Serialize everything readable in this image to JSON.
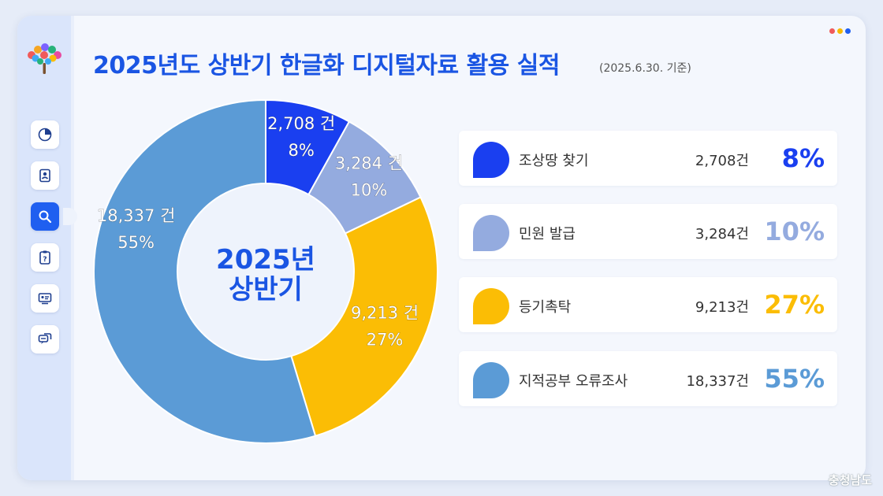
{
  "header": {
    "title": "2025년도 상반기 한글화 디지털자료 활용 실적",
    "subtitle": "(2025.6.30. 기준)"
  },
  "sidebar": {
    "items": [
      {
        "icon": "pie-chart-icon"
      },
      {
        "icon": "document-person-icon"
      },
      {
        "icon": "search-icon"
      },
      {
        "icon": "clipboard-question-icon"
      },
      {
        "icon": "monitor-id-icon"
      },
      {
        "icon": "chat-bubbles-icon"
      }
    ]
  },
  "window_dots": [
    "#f05a5a",
    "#f6b800",
    "#1f5ff0"
  ],
  "chart_data": {
    "type": "pie",
    "center_label": [
      "2025년",
      "상반기"
    ],
    "slices": [
      {
        "label": "조상땅 찾기",
        "count_text": "2,708 건",
        "count_legend": "2,708건",
        "value": 2708,
        "percent": "8%",
        "color": "#1a3ff0"
      },
      {
        "label": "민원 발급",
        "count_text": "3,284 건",
        "count_legend": "3,284건",
        "value": 3284,
        "percent": "10%",
        "color": "#94abdf"
      },
      {
        "label": "등기촉탁",
        "count_text": "9,213 건",
        "count_legend": "9,213건",
        "value": 9213,
        "percent": "27%",
        "color": "#fbbd05"
      },
      {
        "label": "지적공부 오류조사",
        "count_text": "18,337 건",
        "count_legend": "18,337건",
        "value": 18337,
        "percent": "55%",
        "color": "#5b9bd6"
      }
    ]
  },
  "footer": {
    "text": "충청남도"
  }
}
